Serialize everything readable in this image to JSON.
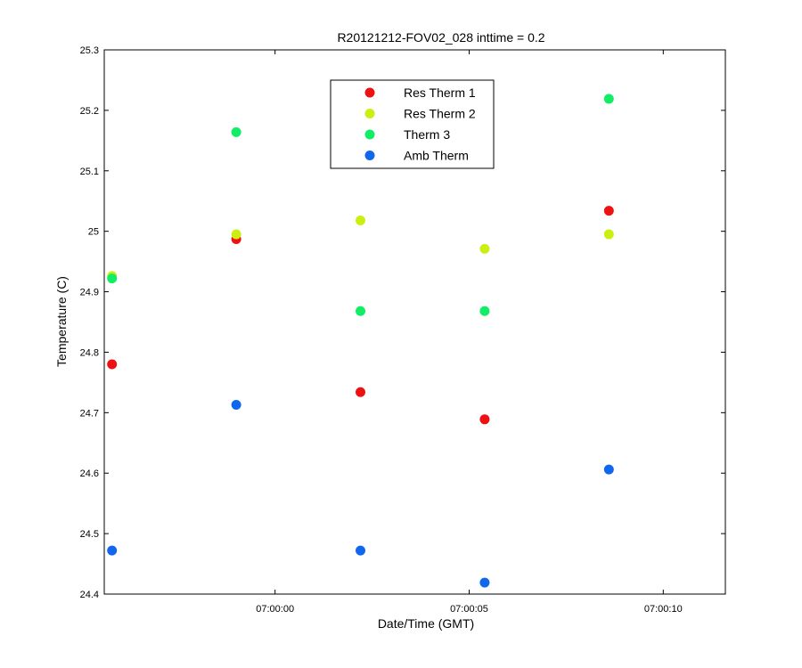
{
  "chart_data": {
    "type": "scatter",
    "title": "R20121212-FOV02_028 inttime = 0.2",
    "xlabel": "Date/Time (GMT)",
    "ylabel": "Temperature (C)",
    "x_unit": "seconds relative to 07:00:00",
    "xlim": [
      -4.4,
      11.6
    ],
    "ylim": [
      24.4,
      25.3
    ],
    "x_ticks": [
      0,
      5,
      10
    ],
    "x_tick_labels": [
      "07:00:00",
      "07:00:05",
      "07:00:10"
    ],
    "y_ticks": [
      24.4,
      24.5,
      24.6,
      24.7,
      24.8,
      24.9,
      25.0,
      25.1,
      25.2,
      25.3
    ],
    "y_tick_labels": [
      "24.4",
      "24.5",
      "24.6",
      "24.7",
      "24.8",
      "24.9",
      "25",
      "25.1",
      "25.2",
      "25.3"
    ],
    "legend_position": "top-center",
    "series": [
      {
        "name": "Res Therm 1",
        "color": "#ee1111",
        "x": [
          -4.2,
          -1.0,
          2.2,
          5.4,
          8.6
        ],
        "y": [
          24.78,
          24.987,
          24.734,
          24.689,
          25.034
        ]
      },
      {
        "name": "Res Therm 2",
        "color": "#ccee11",
        "x": [
          -4.2,
          -1.0,
          2.2,
          5.4,
          8.6
        ],
        "y": [
          24.926,
          24.995,
          25.018,
          24.971,
          24.995
        ]
      },
      {
        "name": "Therm 3",
        "color": "#11ee66",
        "x": [
          -4.2,
          -1.0,
          2.2,
          5.4,
          8.6
        ],
        "y": [
          24.922,
          25.164,
          24.868,
          24.868,
          25.219
        ]
      },
      {
        "name": "Amb Therm",
        "color": "#1166ee",
        "x": [
          -4.2,
          -1.0,
          2.2,
          5.4,
          8.6
        ],
        "y": [
          24.472,
          24.713,
          24.472,
          24.419,
          24.606
        ]
      }
    ]
  }
}
